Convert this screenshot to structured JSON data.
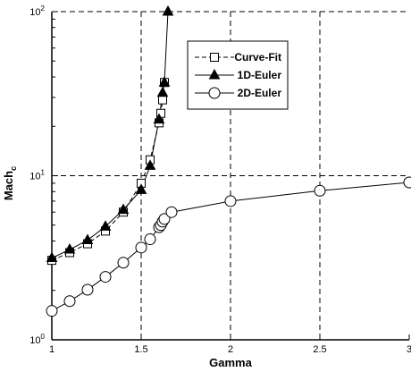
{
  "chart_data": {
    "type": "line",
    "title": "",
    "xlabel": "Gamma",
    "ylabel": "Mach",
    "ylabel_subscript": "c",
    "xscale": "linear",
    "yscale": "log",
    "xlim": [
      1,
      3
    ],
    "ylim": [
      1,
      100
    ],
    "x_ticks": [
      {
        "v": 1,
        "label": "1"
      },
      {
        "v": 1.5,
        "label": "1.5"
      },
      {
        "v": 2,
        "label": "2"
      },
      {
        "v": 2.5,
        "label": "2.5"
      },
      {
        "v": 3,
        "label": "3"
      }
    ],
    "y_ticks": [
      {
        "v": 1,
        "base": "10",
        "exp": "0"
      },
      {
        "v": 10,
        "base": "10",
        "exp": "1"
      },
      {
        "v": 100,
        "base": "10",
        "exp": "2"
      }
    ],
    "grid": "dashed major gridlines",
    "legend_position": "top-right",
    "series": [
      {
        "name": "Curve-Fit",
        "line_style": "dashed",
        "marker": "square-open",
        "points": [
          [
            1.0,
            3.05
          ],
          [
            1.1,
            3.4
          ],
          [
            1.2,
            3.85
          ],
          [
            1.3,
            4.6
          ],
          [
            1.4,
            6.0
          ],
          [
            1.5,
            9.0
          ],
          [
            1.55,
            12.5
          ],
          [
            1.6,
            21.0
          ],
          [
            1.61,
            24.0
          ],
          [
            1.62,
            29.0
          ],
          [
            1.63,
            37.0
          ]
        ]
      },
      {
        "name": "1D-Euler",
        "line_style": "solid",
        "marker": "triangle-filled",
        "points": [
          [
            1.0,
            3.15
          ],
          [
            1.1,
            3.55
          ],
          [
            1.2,
            4.05
          ],
          [
            1.3,
            4.9
          ],
          [
            1.4,
            6.2
          ],
          [
            1.5,
            8.2
          ],
          [
            1.55,
            11.5
          ],
          [
            1.6,
            22.0
          ],
          [
            1.62,
            32.0
          ],
          [
            1.63,
            37.0
          ],
          [
            1.65,
            100.0
          ]
        ]
      },
      {
        "name": "2D-Euler",
        "line_style": "solid",
        "marker": "circle-open",
        "points": [
          [
            1.0,
            1.5
          ],
          [
            1.1,
            1.72
          ],
          [
            1.2,
            2.02
          ],
          [
            1.3,
            2.42
          ],
          [
            1.4,
            2.95
          ],
          [
            1.5,
            3.65
          ],
          [
            1.55,
            4.1
          ],
          [
            1.6,
            4.85
          ],
          [
            1.61,
            5.0
          ],
          [
            1.62,
            5.25
          ],
          [
            1.63,
            5.45
          ],
          [
            1.67,
            6.0
          ],
          [
            2.0,
            7.0
          ],
          [
            2.5,
            8.1
          ],
          [
            3.0,
            9.1
          ]
        ]
      }
    ]
  }
}
